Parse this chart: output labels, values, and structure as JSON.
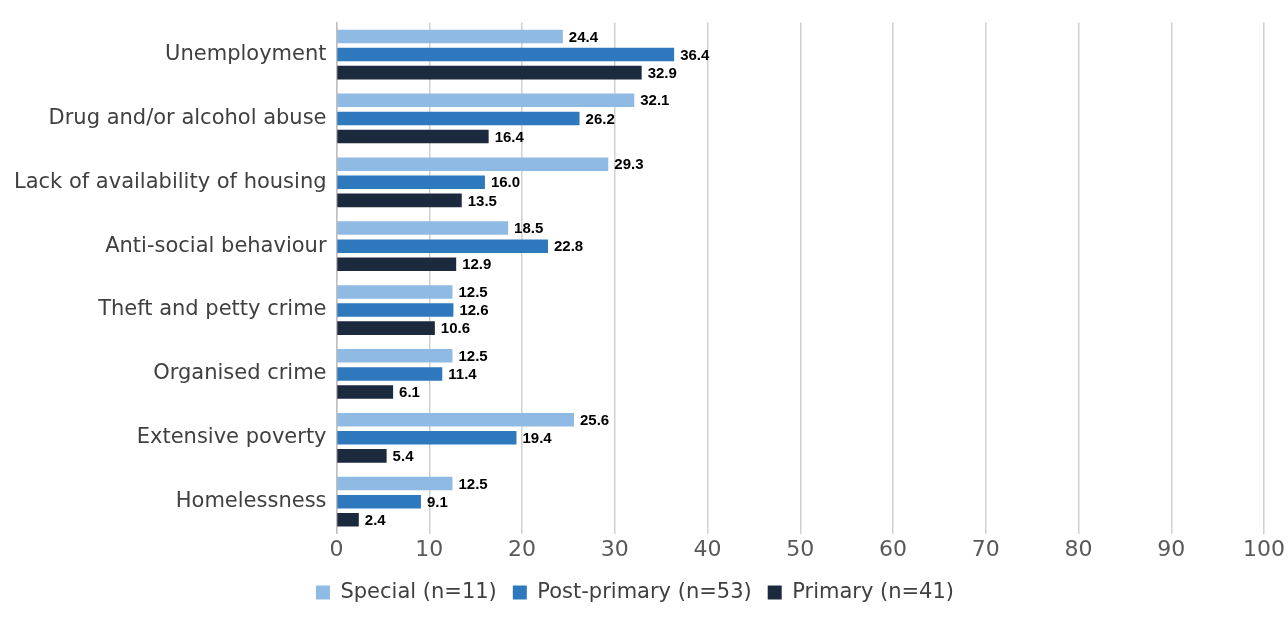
{
  "chart_data": {
    "type": "bar",
    "orientation": "horizontal",
    "categories": [
      "Unemployment",
      "Drug and/or alcohol abuse",
      "Lack of availability of housing",
      "Anti-social behaviour",
      "Theft and petty crime",
      "Organised crime",
      "Extensive poverty",
      "Homelessness"
    ],
    "series": [
      {
        "name": "Special (n=11)",
        "color": "#8fbae3",
        "values": [
          24.4,
          32.1,
          29.3,
          18.5,
          12.5,
          12.5,
          25.6,
          12.5
        ],
        "value_labels": [
          "24.4",
          "32.1",
          "29.3",
          "18.5",
          "12.5",
          "12.5",
          "25.6",
          "12.5"
        ]
      },
      {
        "name": "Post-primary (n=53)",
        "color": "#2e78bd",
        "values": [
          36.4,
          26.2,
          16.0,
          22.8,
          12.6,
          11.4,
          19.4,
          9.1
        ],
        "value_labels": [
          "36.4",
          "26.2",
          "16.0",
          "22.8",
          "12.6",
          "11.4",
          "19.4",
          "9.1"
        ]
      },
      {
        "name": "Primary (n=41)",
        "color": "#1b2a3c",
        "values": [
          32.9,
          16.4,
          13.5,
          12.9,
          10.6,
          6.1,
          5.4,
          2.4
        ],
        "value_labels": [
          "32.9",
          "16.4",
          "13.5",
          "12.9",
          "10.6",
          "6.1",
          "5.4",
          "2.4"
        ]
      }
    ],
    "xlim": [
      0,
      100
    ],
    "xticks": [
      0,
      10,
      20,
      30,
      40,
      50,
      60,
      70,
      80,
      90,
      100
    ],
    "grid": "x",
    "legend": "bottom"
  }
}
